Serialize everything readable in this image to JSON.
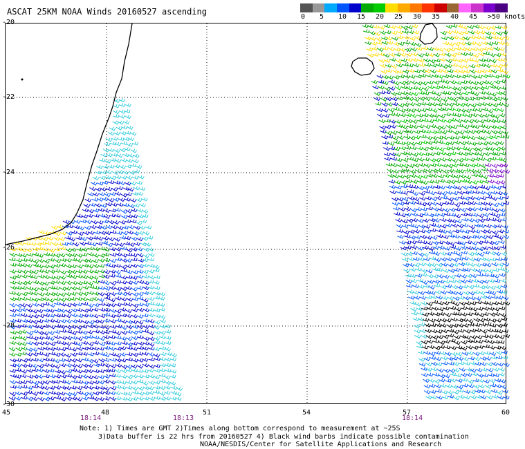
{
  "title": "ASCAT 25KM NOAA Winds 20160527 ascending",
  "legend": {
    "colors": [
      "#555555",
      "#999999",
      "#00aaff",
      "#0055ff",
      "#0000cc",
      "#00aa00",
      "#00cc00",
      "#ffdd00",
      "#ffaa00",
      "#ff7700",
      "#ff3300",
      "#cc0000",
      "#996633",
      "#ff66ff",
      "#cc33cc",
      "#7a00cc",
      "#4b0082"
    ],
    "labels": [
      "0",
      "5",
      "10",
      "15",
      "20",
      "25",
      "30",
      "35",
      "40",
      "45",
      ">50 knots"
    ]
  },
  "axes": {
    "x_ticks": [
      "45",
      "48",
      "51",
      "54",
      "57",
      "60"
    ],
    "y_ticks": [
      "-20",
      "-22",
      "-24",
      "-26",
      "-28",
      "-30"
    ]
  },
  "times": [
    "18:14",
    "18:13",
    "18:14"
  ],
  "notes": {
    "line1": "Note: 1) Times are GMT 2)Times along bottom correspond to measurement at ~25S",
    "line2": "3)Data buffer is 22 hrs from 20160527 4) Black wind barbs indicate possible contamination",
    "line3": "NOAA/NESDIS/Center for Satellite Applications and Research"
  },
  "map_features": {
    "land": [
      "Madagascar",
      "Reunion",
      "Mauritius"
    ]
  }
}
